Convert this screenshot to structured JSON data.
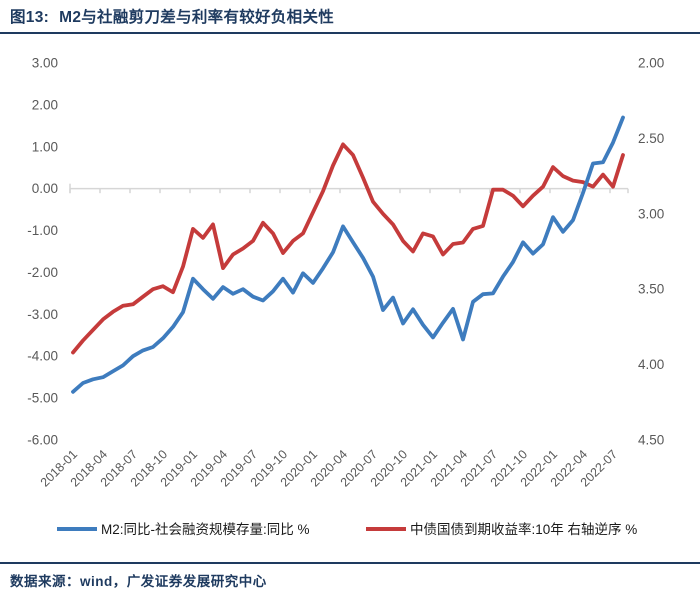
{
  "header": {
    "figure_label": "图13:",
    "title": "M2与社融剪刀差与利率有较好负相关性"
  },
  "footer": {
    "source_text": "数据来源：wind，广发证券发展研究中心"
  },
  "colors": {
    "accent_navy": "#1e3a5f",
    "blue_series": "#3e7cbe",
    "red_series": "#c53b3b",
    "axis_text": "#595959",
    "gridline": "#d6d6d6",
    "legend_text": "#1a1a1a"
  },
  "chart_data": {
    "type": "line",
    "x": [
      "2018-01",
      "2018-02",
      "2018-03",
      "2018-04",
      "2018-05",
      "2018-06",
      "2018-07",
      "2018-08",
      "2018-09",
      "2018-10",
      "2018-11",
      "2018-12",
      "2019-01",
      "2019-02",
      "2019-03",
      "2019-04",
      "2019-05",
      "2019-06",
      "2019-07",
      "2019-08",
      "2019-09",
      "2019-10",
      "2019-11",
      "2019-12",
      "2020-01",
      "2020-02",
      "2020-03",
      "2020-04",
      "2020-05",
      "2020-06",
      "2020-07",
      "2020-08",
      "2020-09",
      "2020-10",
      "2020-11",
      "2020-12",
      "2021-01",
      "2021-02",
      "2021-03",
      "2021-04",
      "2021-05",
      "2021-06",
      "2021-07",
      "2021-08",
      "2021-09",
      "2021-10",
      "2021-11",
      "2021-12",
      "2022-01",
      "2022-02",
      "2022-03",
      "2022-04",
      "2022-05",
      "2022-06",
      "2022-07",
      "2022-08"
    ],
    "x_tick_labels": [
      "2018-01",
      "2018-04",
      "2018-07",
      "2018-10",
      "2019-01",
      "2019-04",
      "2019-07",
      "2019-10",
      "2020-01",
      "2020-04",
      "2020-07",
      "2020-10",
      "2021-01",
      "2021-04",
      "2021-07",
      "2021-10",
      "2022-01",
      "2022-04",
      "2022-07"
    ],
    "x_tick_every": 3,
    "series": [
      {
        "name": "M2:同比-社会融资规模存量:同比  %",
        "axis": "left",
        "color": "#3e7cbe",
        "values": [
          -4.85,
          -4.64,
          -4.55,
          -4.5,
          -4.36,
          -4.22,
          -4.0,
          -3.86,
          -3.78,
          -3.57,
          -3.3,
          -2.95,
          -2.15,
          -2.4,
          -2.63,
          -2.35,
          -2.51,
          -2.4,
          -2.58,
          -2.67,
          -2.45,
          -2.15,
          -2.48,
          -2.02,
          -2.25,
          -1.9,
          -1.52,
          -0.9,
          -1.28,
          -1.65,
          -2.1,
          -2.9,
          -2.6,
          -3.22,
          -2.88,
          -3.25,
          -3.55,
          -3.2,
          -2.87,
          -3.6,
          -2.7,
          -2.52,
          -2.5,
          -2.1,
          -1.75,
          -1.28,
          -1.55,
          -1.33,
          -0.68,
          -1.03,
          -0.75,
          -0.1,
          0.6,
          0.63,
          1.1,
          1.7
        ]
      },
      {
        "name": "中债国债到期收益率:10年 右轴逆序 %",
        "axis": "right",
        "color": "#c53b3b",
        "values": [
          3.92,
          3.84,
          3.77,
          3.7,
          3.65,
          3.61,
          3.6,
          3.55,
          3.5,
          3.48,
          3.52,
          3.35,
          3.1,
          3.16,
          3.07,
          3.36,
          3.27,
          3.23,
          3.18,
          3.06,
          3.13,
          3.26,
          3.18,
          3.13,
          2.99,
          2.85,
          2.68,
          2.54,
          2.61,
          2.76,
          2.92,
          3.0,
          3.07,
          3.18,
          3.25,
          3.13,
          3.15,
          3.27,
          3.2,
          3.19,
          3.1,
          3.08,
          2.84,
          2.84,
          2.88,
          2.95,
          2.88,
          2.82,
          2.69,
          2.75,
          2.78,
          2.79,
          2.82,
          2.74,
          2.82,
          2.61
        ]
      }
    ],
    "left_axis": {
      "min": -6.0,
      "max": 3.0,
      "step": 1.0,
      "ticks": [
        "3.00",
        "2.00",
        "1.00",
        "0.00",
        "-1.00",
        "-2.00",
        "-3.00",
        "-4.00",
        "-5.00",
        "-6.00"
      ]
    },
    "right_axis": {
      "min": 2.0,
      "max": 4.5,
      "step": 0.5,
      "inverted": true,
      "ticks": [
        "2.00",
        "2.50",
        "3.00",
        "3.50",
        "4.00",
        "4.50"
      ]
    },
    "grid": "zero-line-only",
    "legend_position": "bottom",
    "title": "M2与社融剪刀差与利率有较好负相关性"
  }
}
